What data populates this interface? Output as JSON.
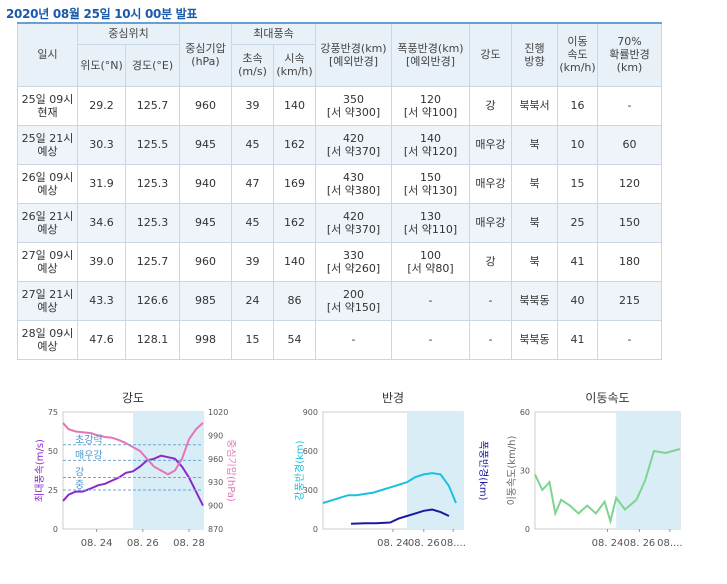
{
  "title": "2020년 08월 25일 10시 00분 발표",
  "headers": {
    "time": "일시",
    "center": "중심위치",
    "lat": "위도(°N)",
    "lon": "경도(°E)",
    "pressure": "중심기압\n(hPa)",
    "maxwind": "최대풍속",
    "ms": "초속\n(m/s)",
    "kmh": "시속\n(km/h)",
    "strong_radius": "강풍반경(km)\n[예외반경]",
    "storm_radius": "폭풍반경(km)\n[예외반경]",
    "intensity": "강도",
    "direction": "진행\n방향",
    "speed": "이동\n속도\n(km/h)",
    "prob": "70%\n확률반경\n(km)"
  },
  "rows": [
    {
      "time": "25일 09시\n현재",
      "lat": "29.2",
      "lon": "125.7",
      "pressure": "960",
      "ms": "39",
      "kmh": "140",
      "strong": "350\n[서 약300]",
      "storm": "120\n[서 약100]",
      "intensity": "강",
      "direction": "북북서",
      "speed": "16",
      "prob": "-"
    },
    {
      "time": "25일 21시\n예상",
      "lat": "30.3",
      "lon": "125.5",
      "pressure": "945",
      "ms": "45",
      "kmh": "162",
      "strong": "420\n[서 약370]",
      "storm": "140\n[서 약120]",
      "intensity": "매우강",
      "direction": "북",
      "speed": "10",
      "prob": "60"
    },
    {
      "time": "26일 09시\n예상",
      "lat": "31.9",
      "lon": "125.3",
      "pressure": "940",
      "ms": "47",
      "kmh": "169",
      "strong": "430\n[서 약380]",
      "storm": "150\n[서 약130]",
      "intensity": "매우강",
      "direction": "북",
      "speed": "15",
      "prob": "120"
    },
    {
      "time": "26일 21시\n예상",
      "lat": "34.6",
      "lon": "125.3",
      "pressure": "945",
      "ms": "45",
      "kmh": "162",
      "strong": "420\n[서 약370]",
      "storm": "130\n[서 약110]",
      "intensity": "매우강",
      "direction": "북",
      "speed": "25",
      "prob": "150"
    },
    {
      "time": "27일 09시\n예상",
      "lat": "39.0",
      "lon": "125.7",
      "pressure": "960",
      "ms": "39",
      "kmh": "140",
      "strong": "330\n[서 약260]",
      "storm": "100\n[서 약80]",
      "intensity": "강",
      "direction": "북",
      "speed": "41",
      "prob": "180"
    },
    {
      "time": "27일 21시\n예상",
      "lat": "43.3",
      "lon": "126.6",
      "pressure": "985",
      "ms": "24",
      "kmh": "86",
      "strong": "200\n[서 약150]",
      "storm": "-",
      "intensity": "-",
      "direction": "북북동",
      "speed": "40",
      "prob": "215"
    },
    {
      "time": "28일 09시\n예상",
      "lat": "47.6",
      "lon": "128.1",
      "pressure": "998",
      "ms": "15",
      "kmh": "54",
      "strong": "-",
      "storm": "-",
      "intensity": "-",
      "direction": "북북동",
      "speed": "41",
      "prob": "-"
    }
  ],
  "colors": {
    "header_bg": "#e8f0f8",
    "border": "#c8d6e6",
    "accent": "#1a5aa8",
    "forecast_band": "#d9edf7"
  },
  "chart_data": [
    {
      "type": "line",
      "title": "강도",
      "ylabel_left": "최대풍속(m/s)",
      "ylabel_right": "중심기압(hPa)",
      "ylim_left": [
        0,
        75
      ],
      "ylim_right": [
        870,
        1020
      ],
      "yticks_left": [
        "0",
        "25",
        "50",
        "75"
      ],
      "yticks_right": [
        "870",
        "900",
        "930",
        "960",
        "990",
        "1020"
      ],
      "xticks": [
        "08. 24",
        "08. 26",
        "08. 28"
      ],
      "intensity_levels": [
        "초강력",
        "매우강",
        "강",
        "중"
      ],
      "series": [
        {
          "name": "최대풍속",
          "color": "#8b28cc",
          "x": [
            0,
            0.04,
            0.09,
            0.14,
            0.2,
            0.25,
            0.3,
            0.35,
            0.4,
            0.45,
            0.5,
            0.55,
            0.6,
            0.65,
            0.7,
            0.75,
            0.8,
            0.85,
            0.9,
            0.95,
            1.0
          ],
          "values": [
            18,
            22,
            24,
            24,
            26,
            28,
            29,
            31,
            33,
            36,
            37,
            40,
            44,
            45,
            47,
            46,
            45,
            40,
            33,
            24,
            15
          ]
        },
        {
          "name": "중심기압",
          "color": "#e674b6",
          "x": [
            0,
            0.04,
            0.09,
            0.14,
            0.2,
            0.25,
            0.3,
            0.35,
            0.4,
            0.45,
            0.5,
            0.55,
            0.6,
            0.65,
            0.7,
            0.75,
            0.8,
            0.85,
            0.9,
            0.95,
            1.0
          ],
          "values": [
            1006,
            998,
            995,
            994,
            993,
            990,
            988,
            987,
            984,
            980,
            975,
            970,
            960,
            950,
            945,
            940,
            945,
            960,
            985,
            998,
            1006
          ]
        }
      ]
    },
    {
      "type": "line",
      "title": "반경",
      "ylabel_left": "강풍반경(km)",
      "ylabel_right": "폭풍반경(km)",
      "ylim_left": [
        0,
        900
      ],
      "yticks_left": [
        "0",
        "300",
        "600",
        "900"
      ],
      "xticks": [
        "08. 24",
        "08. 26",
        "08...."
      ],
      "series": [
        {
          "name": "강풍반경",
          "color": "#1ac0e0",
          "x": [
            0,
            0.06,
            0.12,
            0.18,
            0.24,
            0.3,
            0.36,
            0.42,
            0.48,
            0.54,
            0.6,
            0.66,
            0.72,
            0.78,
            0.84,
            0.9,
            0.95
          ],
          "values": [
            200,
            220,
            240,
            260,
            260,
            270,
            280,
            300,
            320,
            340,
            360,
            400,
            420,
            430,
            420,
            330,
            200
          ]
        },
        {
          "name": "폭풍반경",
          "color": "#1a1a9e",
          "x": [
            0.2,
            0.3,
            0.38,
            0.48,
            0.54,
            0.6,
            0.66,
            0.72,
            0.78,
            0.84,
            0.9
          ],
          "values": [
            40,
            45,
            45,
            50,
            80,
            100,
            120,
            140,
            150,
            130,
            100
          ]
        }
      ]
    },
    {
      "type": "line",
      "title": "이동속도",
      "ylabel_left": "이동속도(km/h)",
      "ylim_left": [
        0,
        60
      ],
      "yticks_left": [
        "0",
        "30",
        "60"
      ],
      "xticks": [
        "08. 24",
        "08. 26",
        "08...."
      ],
      "series": [
        {
          "name": "이동속도",
          "color": "#7ed491",
          "x": [
            0,
            0.05,
            0.1,
            0.14,
            0.18,
            0.24,
            0.3,
            0.36,
            0.42,
            0.48,
            0.52,
            0.56,
            0.62,
            0.7,
            0.76,
            0.82,
            0.9,
            1.0
          ],
          "values": [
            28,
            20,
            24,
            8,
            15,
            12,
            8,
            12,
            8,
            14,
            4,
            16,
            10,
            15,
            25,
            40,
            39,
            41
          ]
        }
      ]
    }
  ]
}
